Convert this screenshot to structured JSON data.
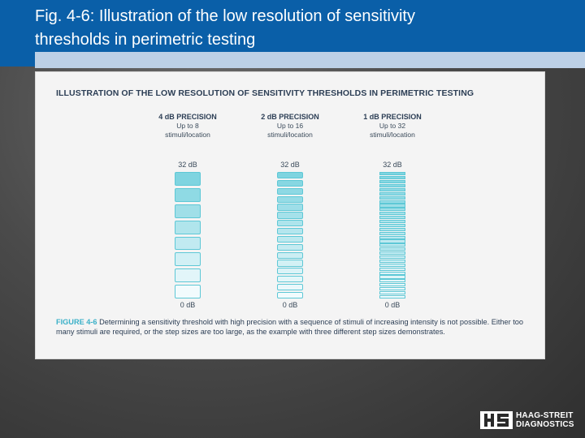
{
  "slide": {
    "title_line1": "Fig. 4-6: Illustration of the low resolution of sensitivity",
    "title_line2": "thresholds in perimetric testing"
  },
  "figure": {
    "heading": "ILLUSTRATION OF THE LOW RESOLUTION OF SENSITIVITY THRESHOLDS IN PERIMETRIC TESTING",
    "columns": [
      {
        "title": "4 dB PRECISION",
        "sub1": "Up to 8",
        "sub2": "stimuli/location",
        "top": "32 dB",
        "bottom": "0 dB",
        "steps": 8
      },
      {
        "title": "2 dB PRECISION",
        "sub1": "Up to 16",
        "sub2": "stimuli/location",
        "top": "32 dB",
        "bottom": "0 dB",
        "steps": 16
      },
      {
        "title": "1 dB PRECISION",
        "sub1": "Up to 32",
        "sub2": "stimuli/location",
        "top": "32 dB",
        "bottom": "0 dB",
        "steps": 32
      }
    ],
    "caption_label": "FIGURE 4-6",
    "caption_text": "Determining a sensitivity threshold with high precision with a sequence of stimuli of increasing intensity is not possible. Either too many stimuli are required, or the step sizes are too large, as the example with three different step sizes demonstrates."
  },
  "colors": {
    "header": "#0a5fa8",
    "step_border": "#5ec8d6",
    "step_dark": "#7fd4e0",
    "step_light": "#f2fbfd"
  },
  "logo": {
    "line1": "HAAG-STREIT",
    "line2": "DIAGNOSTICS"
  }
}
